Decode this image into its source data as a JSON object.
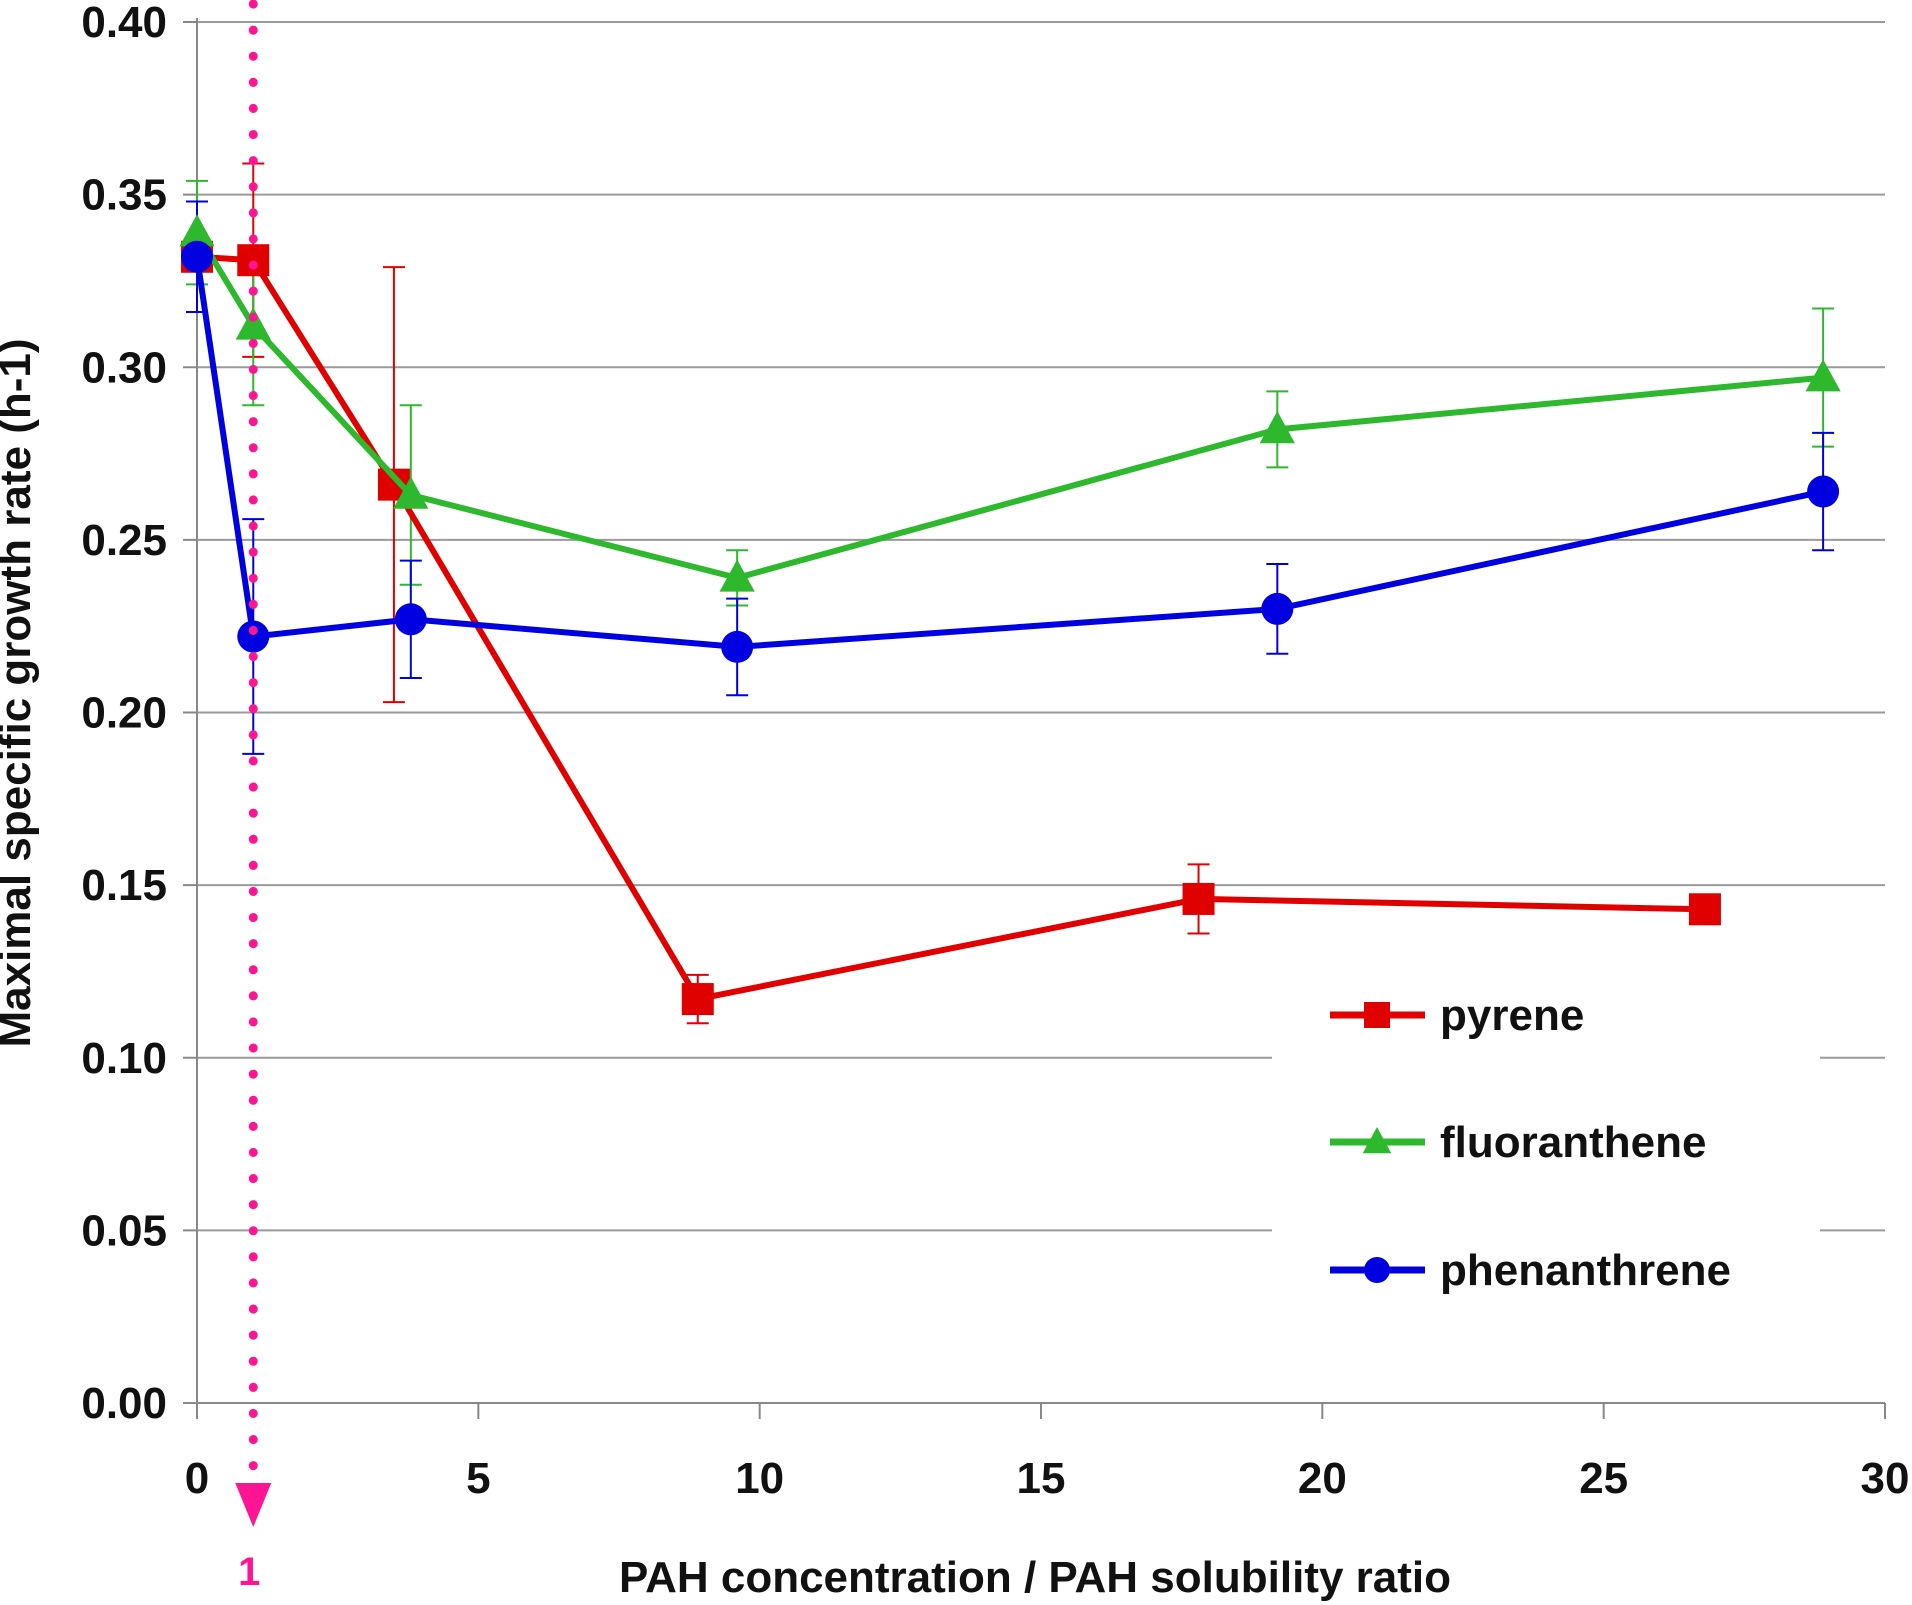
{
  "chart_data": {
    "type": "line",
    "title": "",
    "xlabel": "PAH concentration / PAH solubility ratio",
    "ylabel": "Maximal specific growth rate (h-1)",
    "xlim": [
      0,
      30
    ],
    "ylim": [
      0,
      0.4
    ],
    "xticks": [
      0,
      5,
      10,
      15,
      20,
      25,
      30
    ],
    "xtick_labels": [
      "0",
      "5",
      "10",
      "15",
      "20",
      "25",
      "30"
    ],
    "yticks": [
      0,
      0.05,
      0.1,
      0.15,
      0.2,
      0.25,
      0.3,
      0.35,
      0.4
    ],
    "ytick_labels": [
      "0.00",
      "0.05",
      "0.10",
      "0.15",
      "0.20",
      "0.25",
      "0.30",
      "0.35",
      "0.40"
    ],
    "grid": true,
    "legend_position": "bottom-right",
    "series": [
      {
        "name": "pyrene",
        "color": "#e00000",
        "marker": "square",
        "x": [
          0,
          1,
          3.5,
          8.9,
          17.8,
          26.8
        ],
        "y": [
          0.332,
          0.331,
          0.266,
          0.117,
          0.146,
          0.143
        ],
        "err": [
          0,
          0.028,
          0.063,
          0.007,
          0.01,
          0
        ]
      },
      {
        "name": "fluoranthene",
        "color": "#2db82d",
        "marker": "triangle",
        "x": [
          0,
          1,
          3.8,
          9.6,
          19.2,
          28.9
        ],
        "y": [
          0.339,
          0.312,
          0.263,
          0.239,
          0.282,
          0.297
        ],
        "err": [
          0.015,
          0.023,
          0.026,
          0.008,
          0.011,
          0.02
        ]
      },
      {
        "name": "phenanthrene",
        "color": "#0000e0",
        "marker": "circle",
        "x": [
          0,
          1,
          3.8,
          9.6,
          19.2,
          28.9
        ],
        "y": [
          0.332,
          0.222,
          0.227,
          0.219,
          0.23,
          0.264
        ],
        "err": [
          0.016,
          0.034,
          0.017,
          0.014,
          0.013,
          0.017
        ]
      }
    ],
    "annotation": {
      "label": "1",
      "x": 1,
      "color": "#ff1493",
      "style": "dotted vertical arrow"
    }
  }
}
